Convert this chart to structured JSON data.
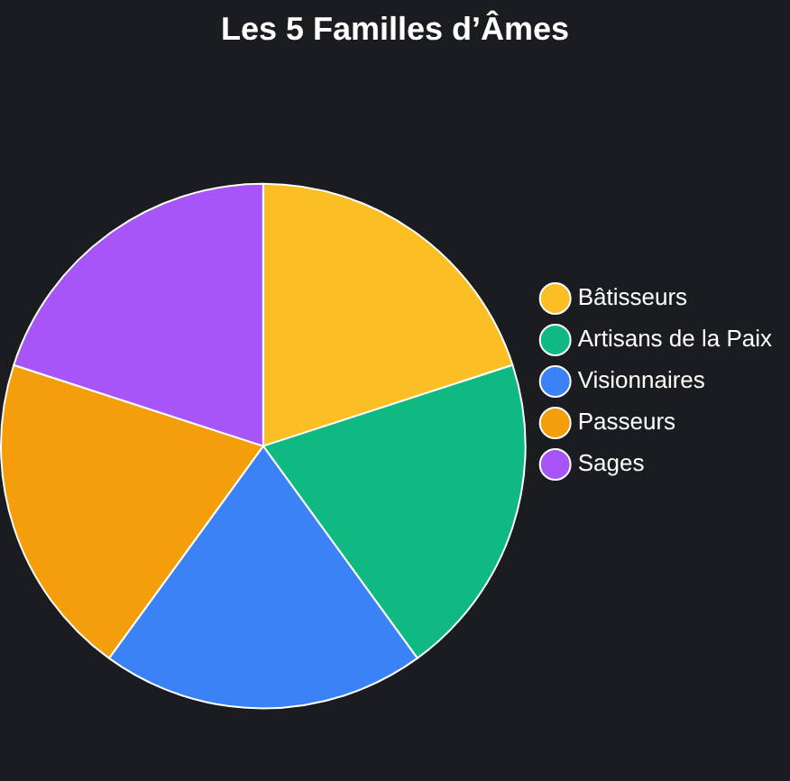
{
  "chart_data": {
    "type": "pie",
    "title": "Les 5 Familles d’Âmes",
    "categories": [
      "Bâtisseurs",
      "Artisans de la Paix",
      "Visionnaires",
      "Passeurs",
      "Sages"
    ],
    "values": [
      20,
      20,
      20,
      20,
      20
    ],
    "colors": [
      "#fbbf24",
      "#10b981",
      "#3b82f6",
      "#f59e0b",
      "#a855f7"
    ],
    "legend": "right"
  }
}
